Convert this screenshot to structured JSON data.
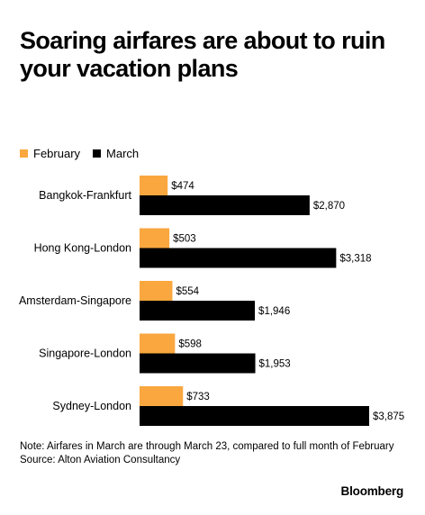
{
  "title": "Soaring airfares are about to ruin your vacation plans",
  "legend": [
    {
      "label": "February",
      "color": "#f9a73e"
    },
    {
      "label": "March",
      "color": "#000000"
    }
  ],
  "chart_data": {
    "type": "bar",
    "orientation": "horizontal",
    "categories": [
      "Bangkok-Frankfurt",
      "Hong Kong-London",
      "Amsterdam-Singapore",
      "Singapore-London",
      "Sydney-London"
    ],
    "series": [
      {
        "name": "February",
        "color": "#f9a73e",
        "values": [
          474,
          503,
          554,
          598,
          733
        ],
        "labels": [
          "$474",
          "$503",
          "$554",
          "$598",
          "$733"
        ]
      },
      {
        "name": "March",
        "color": "#000000",
        "values": [
          2870,
          3318,
          1946,
          1953,
          3875
        ],
        "labels": [
          "$2,870",
          "$3,318",
          "$1,946",
          "$1,953",
          "$3,875"
        ]
      }
    ],
    "xlim": [
      0,
      3875
    ],
    "grid": false,
    "legend_position": "top-left"
  },
  "note": "Note: Airfares in March are through March 23, compared to full month of February",
  "source": "Source: Alton Aviation Consultancy",
  "brand": "Bloomberg"
}
